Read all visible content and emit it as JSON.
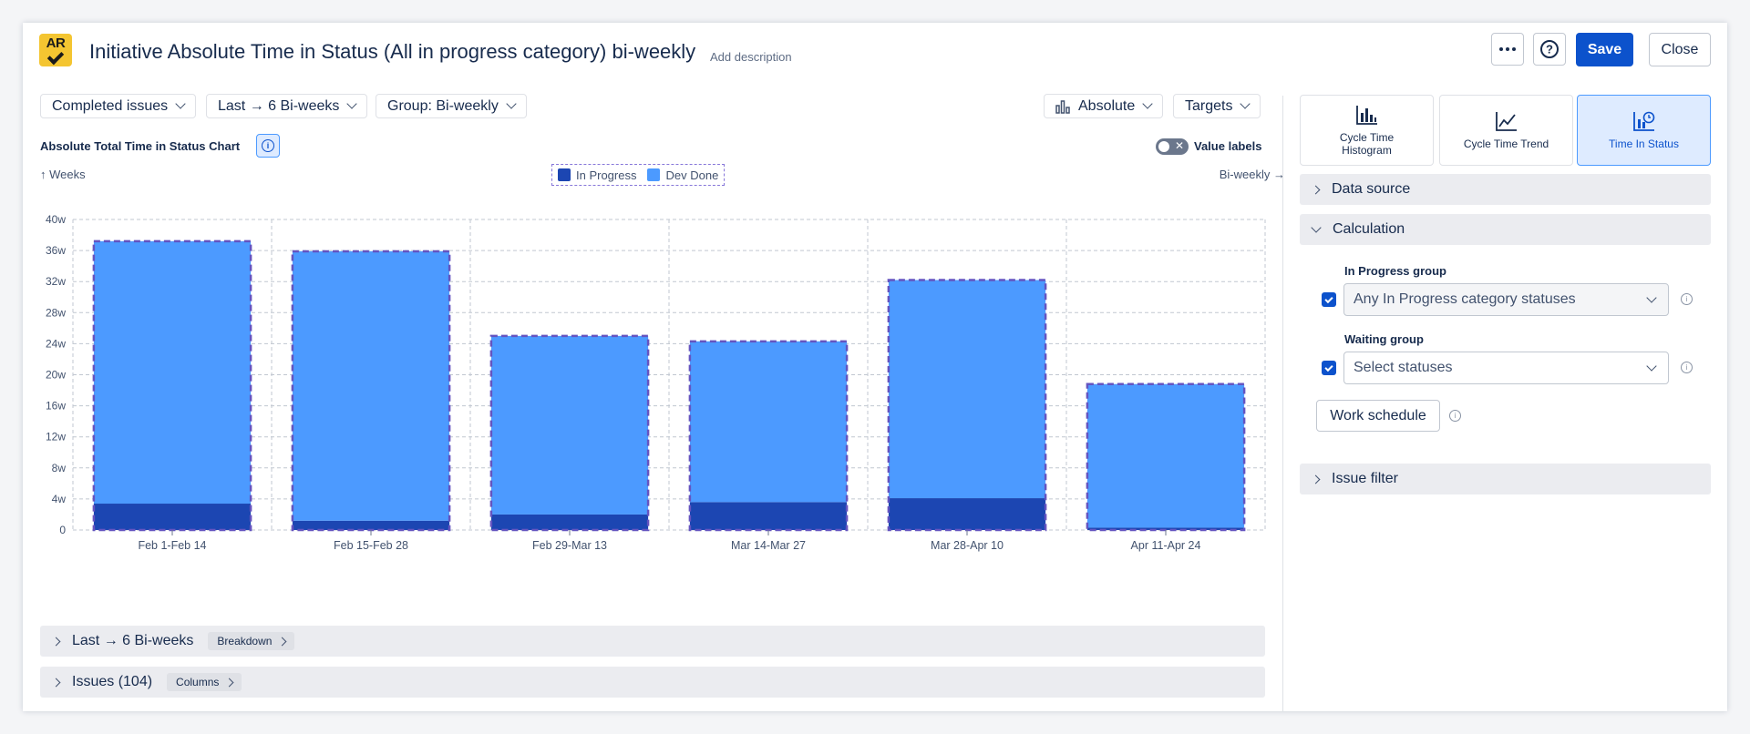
{
  "header": {
    "logo_text": "AR",
    "title": "Initiative Absolute Time in Status (All in progress category) bi-weekly",
    "add_description": "Add description",
    "save_label": "Save",
    "close_label": "Close"
  },
  "toolbar": {
    "issues_filter": "Completed issues",
    "period": "Last → 6 Bi-weeks",
    "group": "Group: Bi-weekly",
    "mode": "Absolute",
    "targets": "Targets"
  },
  "chart_header": {
    "title": "Absolute Total Time in Status Chart",
    "value_labels": "Value labels",
    "y_unit": "Weeks",
    "x_unit": "Bi-weekly"
  },
  "chart_data": {
    "type": "bar",
    "stacked": true,
    "categories": [
      "Feb 1-Feb 14",
      "Feb 15-Feb 28",
      "Feb 29-Mar 13",
      "Mar 14-Mar 27",
      "Mar 28-Apr 10",
      "Apr 11-Apr 24"
    ],
    "series": [
      {
        "name": "In Progress",
        "color": "#1c46b2",
        "values": [
          3.4,
          1.2,
          2.0,
          3.6,
          4.1,
          0.3
        ]
      },
      {
        "name": "Dev Done",
        "color": "#4c9aff",
        "values": [
          33.8,
          34.7,
          23.0,
          20.7,
          28.1,
          18.5
        ]
      }
    ],
    "y_ticks": [
      "0",
      "4w",
      "8w",
      "12w",
      "16w",
      "20w",
      "24w",
      "28w",
      "32w",
      "36w",
      "40w"
    ],
    "ylim": [
      0,
      40
    ],
    "grid": true,
    "legend_position": "top-center"
  },
  "accordions": {
    "period": {
      "label": "Last → 6 Bi-weeks",
      "pill": "Breakdown"
    },
    "issues": {
      "label": "Issues (104)",
      "pill": "Columns"
    }
  },
  "side": {
    "tabs": [
      {
        "label": "Cycle Time Histogram"
      },
      {
        "label": "Cycle Time Trend"
      },
      {
        "label": "Time In Status"
      }
    ],
    "data_source": "Data source",
    "calculation": "Calculation",
    "in_progress_group": {
      "label": "In Progress group",
      "value": "Any In Progress category statuses"
    },
    "waiting_group": {
      "label": "Waiting group",
      "placeholder": "Select statuses"
    },
    "work_schedule": "Work schedule",
    "issue_filter": "Issue filter"
  }
}
